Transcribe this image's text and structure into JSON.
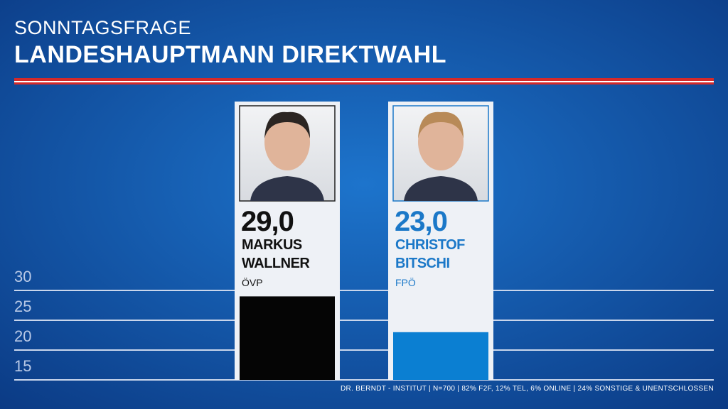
{
  "subtitle": "SONNTAGSFRAGE",
  "chart_data": {
    "type": "bar",
    "title": "LANDESHAUPTMANN DIREKTWAHL",
    "categories": [
      "MARKUS WALLNER",
      "CHRISTOF BITSCHI"
    ],
    "parties": [
      "ÖVP",
      "FPÖ"
    ],
    "values": [
      29.0,
      23.0
    ],
    "value_labels": [
      "29,0",
      "23,0"
    ],
    "colors": [
      "#050505",
      "#0b7fd2"
    ],
    "text_colors": [
      "#111111",
      "#1b78c8"
    ],
    "ylim": [
      15,
      30
    ],
    "yticks": [
      15,
      20,
      25,
      30
    ],
    "grid": true
  },
  "source": "DR. BERNDT - INSTITUT  |  N=700  |  82% F2F, 12% TEL, 6% ONLINE  |  24% SONSTIGE & UNENTSCHLOSSEN"
}
